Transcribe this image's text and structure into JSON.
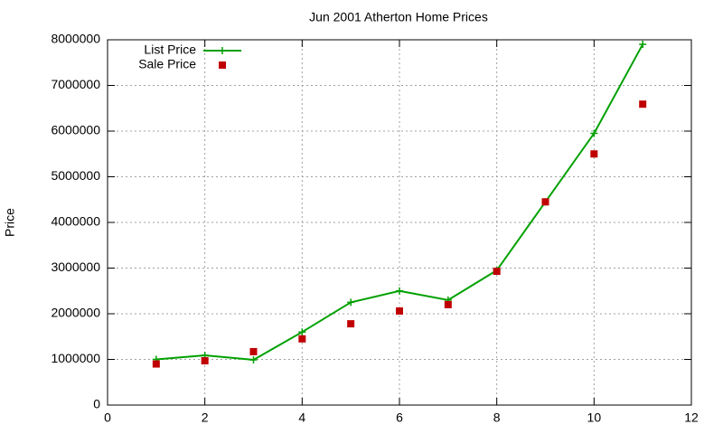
{
  "chart_data": {
    "type": "line",
    "title": "Jun 2001 Atherton Home Prices",
    "y_label": "Price",
    "x": [
      1,
      2,
      3,
      4,
      5,
      6,
      7,
      8,
      9,
      10,
      11
    ],
    "series": [
      {
        "name": "List Price",
        "color": "#00a000",
        "marker": "plus",
        "line": true,
        "values": [
          1000000,
          1090000,
          990000,
          1600000,
          2250000,
          2500000,
          2300000,
          2950000,
          4450000,
          5950000,
          7900000
        ]
      },
      {
        "name": "Sale Price",
        "color": "#c00000",
        "marker": "square",
        "line": false,
        "values": [
          900000,
          970000,
          1170000,
          1450000,
          1780000,
          2060000,
          2200000,
          2930000,
          4450000,
          5500000,
          6590000
        ]
      }
    ],
    "xlim": [
      0,
      12
    ],
    "xticks": [
      0,
      2,
      4,
      6,
      8,
      10,
      12
    ],
    "ylim": [
      0,
      8000000
    ],
    "yticks": [
      0,
      1000000,
      2000000,
      3000000,
      4000000,
      5000000,
      6000000,
      7000000,
      8000000
    ],
    "grid": true,
    "legend": "top-left"
  }
}
